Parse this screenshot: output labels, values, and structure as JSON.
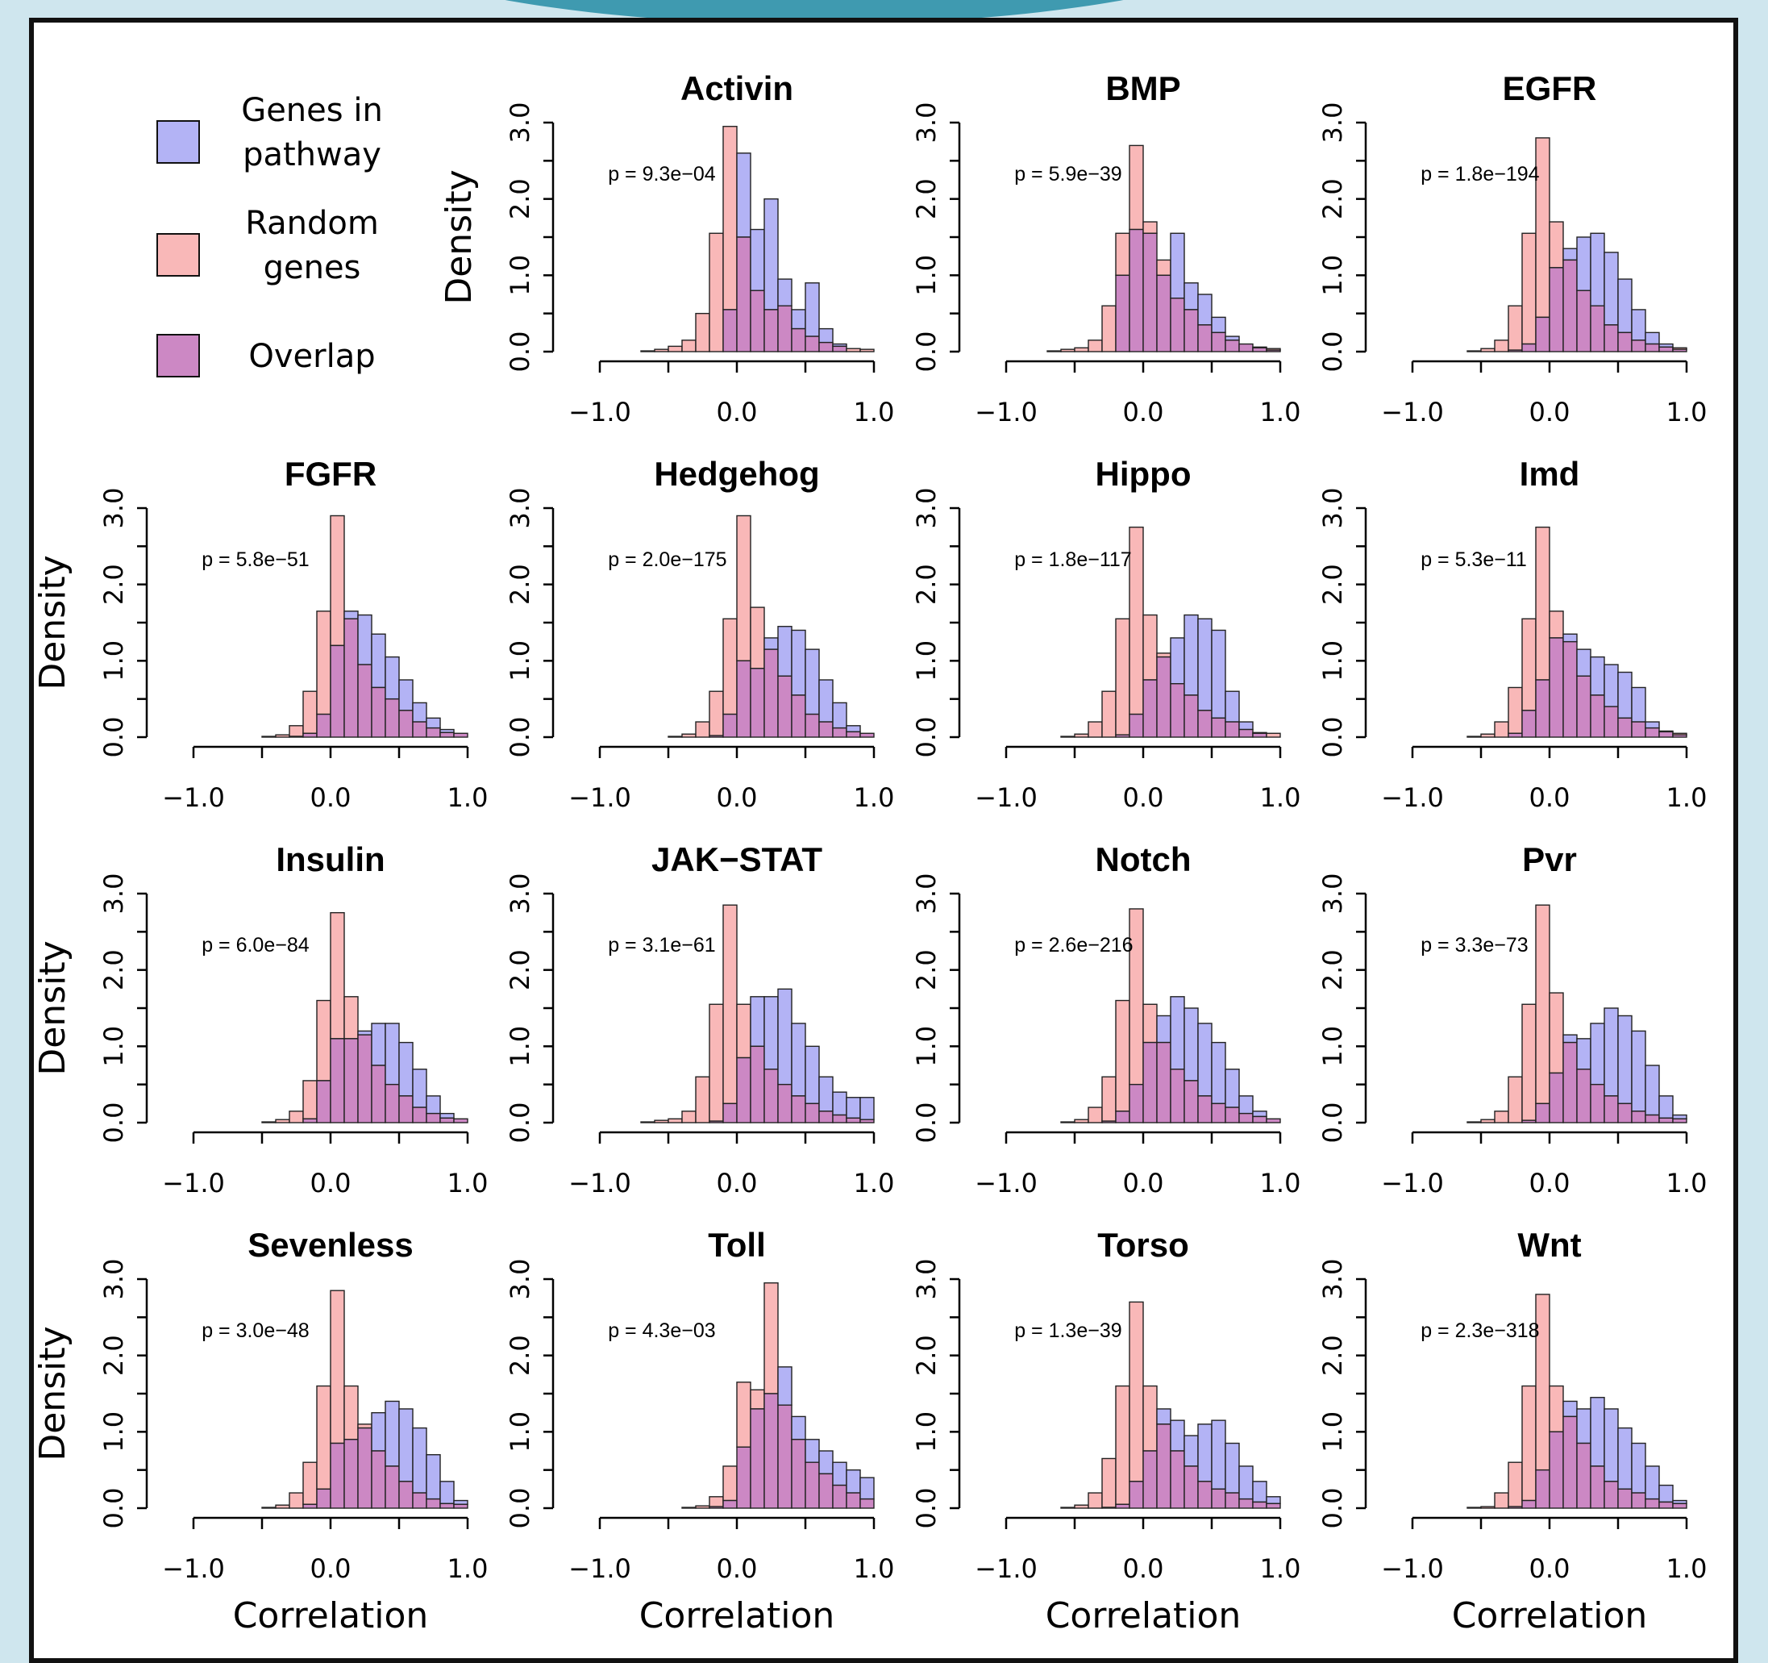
{
  "legend": {
    "items": [
      {
        "label_line1": "Genes in",
        "label_line2": "pathway",
        "color": "#b3b3f5"
      },
      {
        "label_line1": "Random",
        "label_line2": "genes",
        "color": "#f9b8b8"
      },
      {
        "label_line1": "Overlap",
        "label_line2": "",
        "color": "#cc88c4"
      }
    ]
  },
  "chart_data": {
    "type": "histogram",
    "xlabel": "Correlation",
    "ylabel": "Density",
    "xlim": [
      -1.0,
      1.0
    ],
    "ylim": [
      0.0,
      3.0
    ],
    "x_ticks": [
      -1.0,
      -0.5,
      0.0,
      0.5,
      1.0
    ],
    "x_tick_labels": [
      "−1.0",
      "0.0",
      "1.0"
    ],
    "y_ticks": [
      0.0,
      0.5,
      1.0,
      1.5,
      2.0,
      2.5,
      3.0
    ],
    "y_tick_labels": [
      "0.0",
      "1.0",
      "2.0",
      "3.0"
    ],
    "bin_width": 0.1,
    "bin_start": -1.0,
    "colors": {
      "pathway": "#b3b3f5",
      "random": "#f9b8b8",
      "overlap": "#cc88c4",
      "outline": "#222222"
    },
    "panels": [
      {
        "title": "Activin",
        "p": "p = 9.3e−04",
        "pathway": [
          0,
          0,
          0,
          0,
          0,
          0,
          0,
          0,
          0,
          0.55,
          2.6,
          1.6,
          2.0,
          0.95,
          0.55,
          0.9,
          0.3,
          0.1,
          0,
          0
        ],
        "random": [
          0,
          0,
          0,
          0.01,
          0.03,
          0.07,
          0.15,
          0.5,
          1.55,
          2.95,
          1.5,
          0.8,
          0.55,
          0.6,
          0.3,
          0.2,
          0.12,
          0.07,
          0.04,
          0.03
        ]
      },
      {
        "title": "BMP",
        "p": "p = 5.9e−39",
        "pathway": [
          0,
          0,
          0,
          0,
          0,
          0,
          0,
          0,
          1.0,
          1.6,
          1.55,
          1.0,
          1.55,
          0.9,
          0.75,
          0.45,
          0.2,
          0.1,
          0.05,
          0.02
        ],
        "random": [
          0,
          0,
          0,
          0.01,
          0.03,
          0.05,
          0.15,
          0.6,
          1.55,
          2.7,
          1.7,
          1.2,
          0.7,
          0.55,
          0.35,
          0.25,
          0.15,
          0.1,
          0.06,
          0.04
        ]
      },
      {
        "title": "EGFR",
        "p": "p = 1.8e−194",
        "pathway": [
          0,
          0,
          0,
          0,
          0,
          0,
          0,
          0.02,
          0.1,
          0.45,
          1.1,
          1.35,
          1.5,
          1.55,
          1.3,
          0.95,
          0.55,
          0.25,
          0.1,
          0.03
        ],
        "random": [
          0,
          0,
          0,
          0,
          0.01,
          0.04,
          0.15,
          0.6,
          1.55,
          2.8,
          1.7,
          1.2,
          0.8,
          0.6,
          0.35,
          0.25,
          0.15,
          0.1,
          0.06,
          0.05
        ]
      },
      {
        "title": "FGFR",
        "p": "p = 5.8e−51",
        "pathway": [
          0,
          0,
          0,
          0,
          0,
          0,
          0,
          0.01,
          0.05,
          0.3,
          1.2,
          1.65,
          1.6,
          1.35,
          1.05,
          0.75,
          0.45,
          0.25,
          0.1,
          0.05
        ],
        "random": [
          0,
          0,
          0,
          0,
          0,
          0.01,
          0.03,
          0.15,
          0.6,
          1.65,
          2.9,
          1.55,
          0.95,
          0.65,
          0.5,
          0.35,
          0.2,
          0.12,
          0.06,
          0.05
        ]
      },
      {
        "title": "Hedgehog",
        "p": "p = 2.0e−175",
        "pathway": [
          0,
          0,
          0,
          0,
          0,
          0,
          0,
          0,
          0.02,
          0.3,
          1.0,
          0.9,
          1.3,
          1.45,
          1.4,
          1.15,
          0.75,
          0.45,
          0.15,
          0.05
        ],
        "random": [
          0,
          0,
          0,
          0,
          0,
          0.01,
          0.04,
          0.2,
          0.6,
          1.55,
          2.9,
          1.7,
          1.15,
          0.8,
          0.55,
          0.3,
          0.2,
          0.12,
          0.07,
          0.05
        ]
      },
      {
        "title": "Hippo",
        "p": "p = 1.8e−117",
        "pathway": [
          0,
          0,
          0,
          0,
          0,
          0,
          0,
          0,
          0.03,
          0.3,
          0.75,
          1.05,
          1.3,
          1.6,
          1.55,
          1.4,
          0.6,
          0.2,
          0.05,
          0
        ],
        "random": [
          0,
          0,
          0,
          0,
          0.01,
          0.04,
          0.2,
          0.6,
          1.55,
          2.75,
          1.6,
          1.1,
          0.7,
          0.55,
          0.35,
          0.25,
          0.2,
          0.1,
          0.06,
          0.05
        ]
      },
      {
        "title": "Imd",
        "p": "p = 5.3e−11",
        "pathway": [
          0,
          0,
          0,
          0,
          0,
          0,
          0,
          0.05,
          0.35,
          0.75,
          1.3,
          1.35,
          1.15,
          1.05,
          0.95,
          0.85,
          0.65,
          0.2,
          0.07,
          0.03
        ],
        "random": [
          0,
          0,
          0,
          0,
          0.01,
          0.04,
          0.2,
          0.65,
          1.55,
          2.75,
          1.65,
          1.25,
          0.8,
          0.55,
          0.4,
          0.25,
          0.2,
          0.12,
          0.08,
          0.05
        ]
      },
      {
        "title": "Insulin",
        "p": "p = 6.0e−84",
        "pathway": [
          0,
          0,
          0,
          0,
          0,
          0,
          0,
          0,
          0.05,
          0.55,
          1.1,
          1.1,
          1.2,
          1.3,
          1.3,
          1.05,
          0.7,
          0.35,
          0.12,
          0.05
        ],
        "random": [
          0,
          0,
          0,
          0,
          0,
          0.01,
          0.04,
          0.15,
          0.55,
          1.6,
          2.75,
          1.65,
          1.15,
          0.75,
          0.5,
          0.35,
          0.2,
          0.12,
          0.06,
          0.05
        ]
      },
      {
        "title": "JAK−STAT",
        "p": "p = 3.1e−61",
        "pathway": [
          0,
          0,
          0,
          0,
          0,
          0,
          0,
          0,
          0.02,
          0.25,
          0.85,
          1.65,
          1.65,
          1.75,
          1.3,
          1.0,
          0.6,
          0.4,
          0.33,
          0.33
        ],
        "random": [
          0,
          0,
          0,
          0.01,
          0.03,
          0.05,
          0.15,
          0.6,
          1.55,
          2.85,
          1.55,
          1.0,
          0.7,
          0.5,
          0.35,
          0.25,
          0.15,
          0.1,
          0.06,
          0.04
        ]
      },
      {
        "title": "Notch",
        "p": "p = 2.6e−216",
        "pathway": [
          0,
          0,
          0,
          0,
          0,
          0,
          0,
          0.02,
          0.15,
          0.5,
          1.05,
          1.4,
          1.65,
          1.5,
          1.3,
          1.05,
          0.7,
          0.35,
          0.15,
          0.05
        ],
        "random": [
          0,
          0,
          0,
          0,
          0.01,
          0.04,
          0.2,
          0.6,
          1.6,
          2.8,
          1.55,
          1.05,
          0.7,
          0.55,
          0.35,
          0.25,
          0.2,
          0.12,
          0.08,
          0.05
        ]
      },
      {
        "title": "Pvr",
        "p": "p = 3.3e−73",
        "pathway": [
          0,
          0,
          0,
          0,
          0,
          0,
          0,
          0,
          0.03,
          0.25,
          0.65,
          1.15,
          1.1,
          1.3,
          1.5,
          1.4,
          1.2,
          0.75,
          0.35,
          0.1
        ],
        "random": [
          0,
          0,
          0,
          0,
          0.01,
          0.04,
          0.15,
          0.6,
          1.55,
          2.85,
          1.7,
          1.05,
          0.7,
          0.5,
          0.35,
          0.25,
          0.15,
          0.1,
          0.06,
          0.05
        ]
      },
      {
        "title": "Sevenless",
        "p": "p = 3.0e−48",
        "pathway": [
          0,
          0,
          0,
          0,
          0,
          0,
          0,
          0,
          0.05,
          0.25,
          0.85,
          0.9,
          1.05,
          1.25,
          1.4,
          1.3,
          1.05,
          0.7,
          0.35,
          0.1
        ],
        "random": [
          0,
          0,
          0,
          0,
          0,
          0.01,
          0.04,
          0.2,
          0.6,
          1.6,
          2.85,
          1.6,
          1.1,
          0.75,
          0.55,
          0.35,
          0.2,
          0.12,
          0.06,
          0.05
        ]
      },
      {
        "title": "Toll",
        "p": "p = 4.3e−03",
        "pathway": [
          0,
          0,
          0,
          0,
          0,
          0,
          0,
          0,
          0.02,
          0.1,
          0.8,
          1.3,
          1.5,
          1.85,
          1.2,
          0.9,
          0.75,
          0.6,
          0.5,
          0.4
        ],
        "random": [
          0,
          0,
          0,
          0,
          0,
          0,
          0.01,
          0.03,
          0.15,
          0.55,
          1.65,
          1.55,
          2.95,
          1.35,
          0.9,
          0.6,
          0.45,
          0.3,
          0.2,
          0.12
        ]
      },
      {
        "title": "Torso",
        "p": "p = 1.3e−39",
        "pathway": [
          0,
          0,
          0,
          0,
          0,
          0,
          0,
          0.01,
          0.05,
          0.35,
          0.75,
          1.3,
          1.15,
          0.95,
          1.1,
          1.15,
          0.85,
          0.55,
          0.35,
          0.15
        ],
        "random": [
          0,
          0,
          0,
          0,
          0.01,
          0.04,
          0.2,
          0.65,
          1.6,
          2.7,
          1.6,
          1.1,
          0.75,
          0.55,
          0.35,
          0.25,
          0.2,
          0.12,
          0.08,
          0.06
        ]
      },
      {
        "title": "Wnt",
        "p": "p = 2.3e−318",
        "pathway": [
          0,
          0,
          0,
          0,
          0,
          0,
          0,
          0.02,
          0.1,
          0.5,
          1.0,
          1.4,
          1.3,
          1.45,
          1.3,
          1.05,
          0.85,
          0.55,
          0.3,
          0.1
        ],
        "random": [
          0,
          0,
          0,
          0,
          0.01,
          0.02,
          0.2,
          0.6,
          1.6,
          2.8,
          1.6,
          1.2,
          0.85,
          0.55,
          0.35,
          0.25,
          0.2,
          0.12,
          0.08,
          0.06
        ]
      }
    ]
  }
}
